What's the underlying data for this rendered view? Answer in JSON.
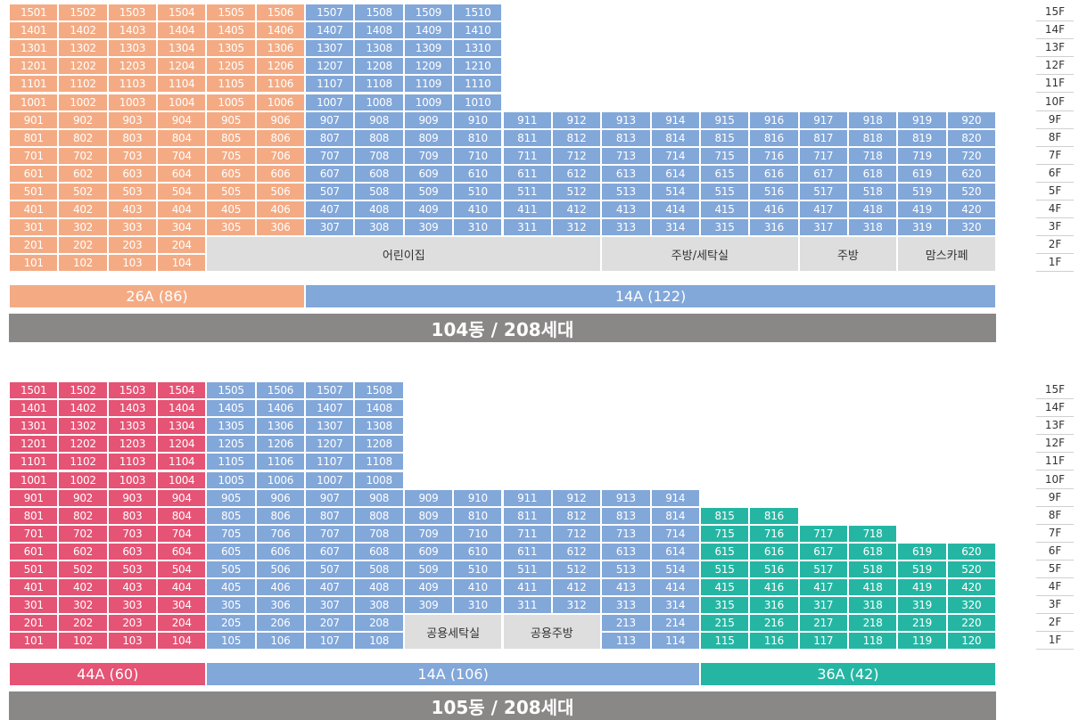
{
  "colors": {
    "orange": "#f4ab84",
    "blue": "#82a7d9",
    "pink": "#e55375",
    "teal": "#25b6a3",
    "facility": "#dedede",
    "building_bar": "#8a8787"
  },
  "floor_labels": [
    "15F",
    "14F",
    "13F",
    "12F",
    "11F",
    "10F",
    "9F",
    "8F",
    "7F",
    "6F",
    "5F",
    "4F",
    "3F",
    "2F",
    "1F"
  ],
  "buildings": [
    {
      "id": "104",
      "title": "104동 / 208세대",
      "unit_ranges": [
        {
          "floors": [
            1,
            2
          ],
          "start": 1,
          "end": 4,
          "type": "orange"
        },
        {
          "floors": [
            3,
            9
          ],
          "start": 1,
          "end": 6,
          "type": "orange"
        },
        {
          "floors": [
            3,
            9
          ],
          "start": 7,
          "end": 20,
          "type": "blue"
        },
        {
          "floors": [
            10,
            15
          ],
          "start": 1,
          "end": 6,
          "type": "orange"
        },
        {
          "floors": [
            10,
            15
          ],
          "start": 7,
          "end": 10,
          "type": "blue"
        }
      ],
      "facilities": [
        {
          "label": "어린이집",
          "from_col": 5,
          "to_col": 12,
          "from_floor": 1,
          "to_floor": 2
        },
        {
          "label": "주방/세탁실",
          "from_col": 13,
          "to_col": 16,
          "from_floor": 1,
          "to_floor": 2
        },
        {
          "label": "주방",
          "from_col": 17,
          "to_col": 18,
          "from_floor": 1,
          "to_floor": 2
        },
        {
          "label": "맘스카페",
          "from_col": 19,
          "to_col": 20,
          "from_floor": 1,
          "to_floor": 2
        }
      ],
      "type_bars": [
        {
          "label": "26A (86)",
          "type": "orange",
          "from_col": 1,
          "to_col": 6
        },
        {
          "label": "14A (122)",
          "type": "blue",
          "from_col": 7,
          "to_col": 20
        }
      ]
    },
    {
      "id": "105",
      "title": "105동 / 208세대",
      "unit_ranges": [
        {
          "floors": [
            10,
            15
          ],
          "start": 1,
          "end": 4,
          "type": "pink"
        },
        {
          "floors": [
            10,
            15
          ],
          "start": 5,
          "end": 8,
          "type": "blue"
        },
        {
          "floors": [
            9,
            9
          ],
          "start": 1,
          "end": 4,
          "type": "pink"
        },
        {
          "floors": [
            9,
            9
          ],
          "start": 5,
          "end": 14,
          "type": "blue"
        },
        {
          "floors": [
            8,
            8
          ],
          "start": 1,
          "end": 4,
          "type": "pink"
        },
        {
          "floors": [
            8,
            8
          ],
          "start": 5,
          "end": 14,
          "type": "blue"
        },
        {
          "floors": [
            8,
            8
          ],
          "start": 15,
          "end": 16,
          "type": "teal"
        },
        {
          "floors": [
            7,
            7
          ],
          "start": 1,
          "end": 4,
          "type": "pink"
        },
        {
          "floors": [
            7,
            7
          ],
          "start": 5,
          "end": 14,
          "type": "blue"
        },
        {
          "floors": [
            7,
            7
          ],
          "start": 15,
          "end": 18,
          "type": "teal"
        },
        {
          "floors": [
            3,
            6
          ],
          "start": 1,
          "end": 4,
          "type": "pink"
        },
        {
          "floors": [
            3,
            6
          ],
          "start": 5,
          "end": 14,
          "type": "blue"
        },
        {
          "floors": [
            3,
            6
          ],
          "start": 15,
          "end": 20,
          "type": "teal"
        },
        {
          "floors": [
            2,
            2
          ],
          "start": 1,
          "end": 4,
          "type": "pink"
        },
        {
          "floors": [
            2,
            2
          ],
          "start": 5,
          "end": 8,
          "type": "blue"
        },
        {
          "floors": [
            2,
            2
          ],
          "start": 13,
          "end": 14,
          "type": "blue"
        },
        {
          "floors": [
            2,
            2
          ],
          "start": 15,
          "end": 20,
          "type": "teal"
        },
        {
          "floors": [
            1,
            1
          ],
          "start": 1,
          "end": 4,
          "type": "pink"
        },
        {
          "floors": [
            1,
            1
          ],
          "start": 5,
          "end": 8,
          "type": "blue"
        },
        {
          "floors": [
            1,
            1
          ],
          "start": 13,
          "end": 14,
          "type": "blue"
        },
        {
          "floors": [
            1,
            1
          ],
          "start": 15,
          "end": 20,
          "type": "teal"
        }
      ],
      "facilities": [
        {
          "label": "공용세탁실",
          "from_col": 9,
          "to_col": 10,
          "from_floor": 1,
          "to_floor": 2
        },
        {
          "label": "공용주방",
          "from_col": 11,
          "to_col": 12,
          "from_floor": 1,
          "to_floor": 2
        }
      ],
      "type_bars": [
        {
          "label": "44A (60)",
          "type": "pink",
          "from_col": 1,
          "to_col": 4
        },
        {
          "label": "14A (106)",
          "type": "blue",
          "from_col": 5,
          "to_col": 14
        },
        {
          "label": "36A (42)",
          "type": "teal",
          "from_col": 15,
          "to_col": 20
        }
      ]
    }
  ]
}
